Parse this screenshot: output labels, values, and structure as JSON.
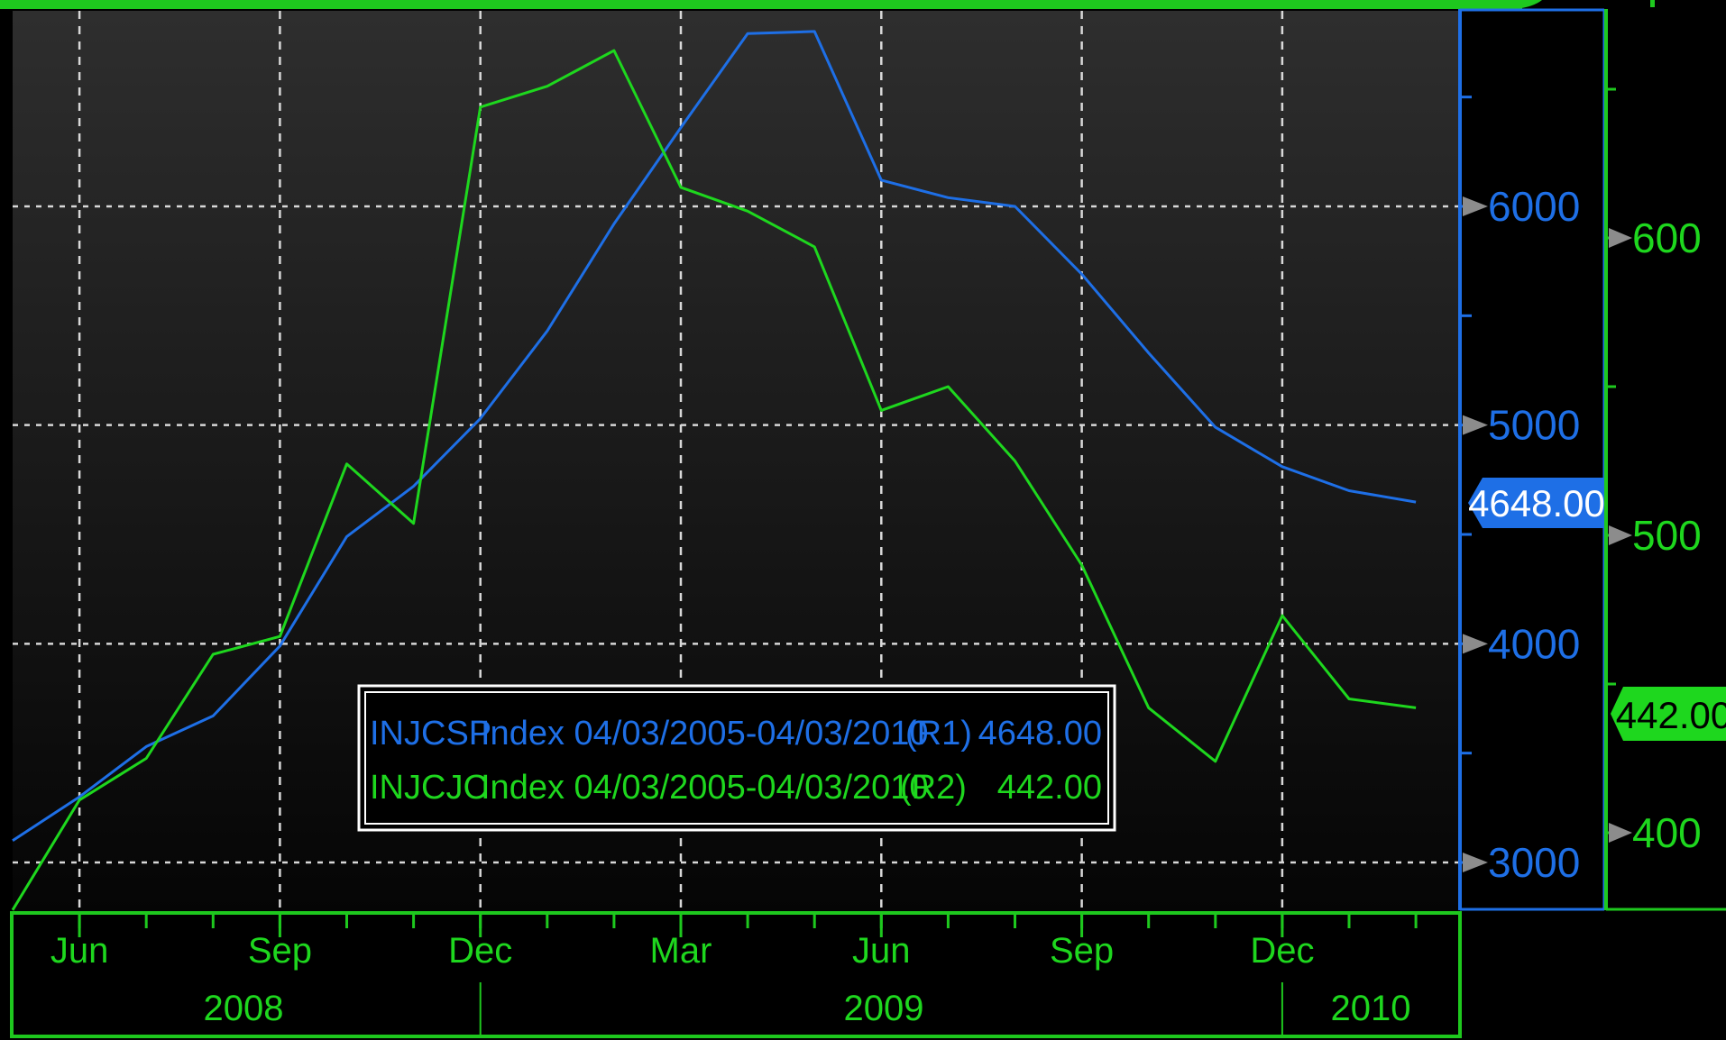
{
  "colors": {
    "r1": "#1e6fe6",
    "r2": "#1ed71e",
    "grid": "#d8d8d8",
    "marker": "#8c8c8c",
    "frame": "#1ec81e",
    "background_top": "#2e2e2e",
    "background_bottom": "#050505"
  },
  "chart_data": {
    "type": "line",
    "x_axis": {
      "month_labels": [
        "Jun",
        "Sep",
        "Dec",
        "Mar",
        "Jun",
        "Sep",
        "Dec"
      ],
      "year_labels": [
        "2008",
        "2009",
        "2010"
      ]
    },
    "y_axis_r1": {
      "ticks": [
        3000,
        4000,
        5000,
        6000
      ],
      "range": [
        2780,
        6970
      ],
      "tick_labels": [
        "3000",
        "4000",
        "5000",
        "6000"
      ]
    },
    "y_axis_r2": {
      "ticks": [
        400,
        500,
        600
      ],
      "range": [
        374,
        675
      ],
      "tick_labels": [
        "400",
        "500",
        "600"
      ]
    },
    "grid": true,
    "series": [
      {
        "name": "INJCSP Index 04/03/2005-04/03/2010",
        "axis": "R1",
        "color": "#1e6fe6",
        "x": [
          "2008-05",
          "2008-06",
          "2008-07",
          "2008-08",
          "2008-09",
          "2008-10",
          "2008-11",
          "2008-12",
          "2009-01",
          "2009-02",
          "2009-03",
          "2009-04",
          "2009-05",
          "2009-06",
          "2009-07",
          "2009-08",
          "2009-09",
          "2009-10",
          "2009-11",
          "2009-12",
          "2010-01",
          "2010-02"
        ],
        "values": [
          3100,
          3300,
          3530,
          3670,
          3990,
          4490,
          4720,
          5030,
          5430,
          5920,
          6360,
          6790,
          6800,
          6120,
          6040,
          6000,
          5690,
          5330,
          4990,
          4810,
          4700,
          4648
        ]
      },
      {
        "name": "INJCJC Index 04/03/2005-04/03/2010",
        "axis": "R2",
        "color": "#1ed71e",
        "x": [
          "2008-05",
          "2008-06",
          "2008-07",
          "2008-08",
          "2008-09",
          "2008-10",
          "2008-11",
          "2008-12",
          "2009-01",
          "2009-02",
          "2009-03",
          "2009-04",
          "2009-05",
          "2009-06",
          "2009-07",
          "2009-08",
          "2009-09",
          "2009-10",
          "2009-11",
          "2009-12",
          "2010-01",
          "2010-02"
        ],
        "values": [
          374,
          411,
          425,
          460,
          466,
          524,
          504,
          644,
          651,
          663,
          617,
          609,
          597,
          542,
          550,
          525,
          490,
          442,
          424,
          473,
          445,
          442
        ]
      }
    ],
    "legend": {
      "placement": "bottom-center",
      "entries": [
        {
          "ticker": "INJCSP",
          "rest": "Index 04/03/2005-04/03/2010",
          "axis": "(R1)",
          "value": "4648.00"
        },
        {
          "ticker": "INJCJC",
          "rest": "Index 04/03/2005-04/03/2010",
          "axis": "(R2)",
          "value": "442.00"
        }
      ]
    },
    "last_value_flags": {
      "r1": "4648.00",
      "r2": "442.00"
    }
  }
}
